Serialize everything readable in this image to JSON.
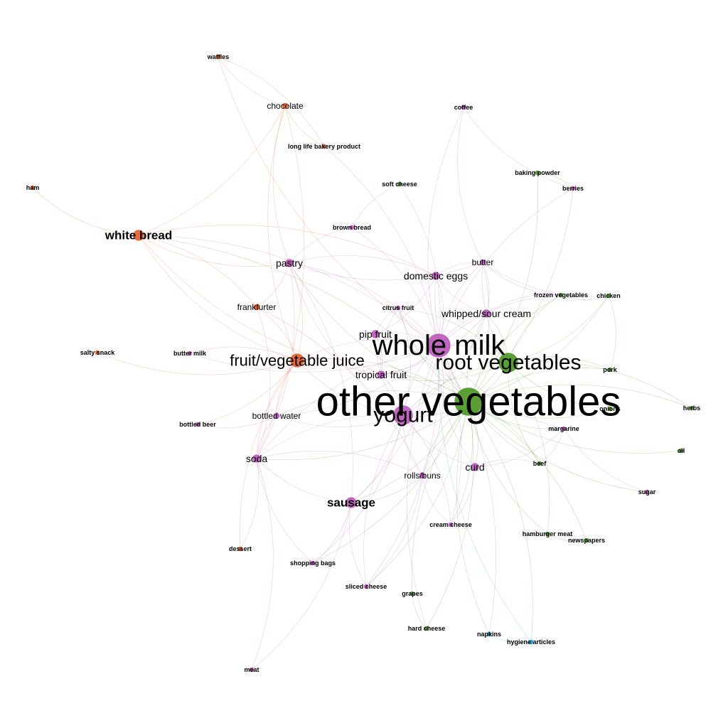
{
  "colors": {
    "orange": "#e8693a",
    "purple": "#c066c0",
    "green": "#5a9e35",
    "cyan": "#29a9d9"
  },
  "nodes": [
    {
      "id": "other_vegetables",
      "label": "other vegetables",
      "group": "green",
      "weight": 10
    },
    {
      "id": "whole_milk",
      "label": "whole milk",
      "group": "purple",
      "weight": 8
    },
    {
      "id": "root_vegetables",
      "label": "root vegetables",
      "group": "green",
      "weight": 6
    },
    {
      "id": "yogurt",
      "label": "yogurt",
      "group": "purple",
      "weight": 6
    },
    {
      "id": "fruit_vegetable_juice",
      "label": "fruit/vegetable juice",
      "group": "orange",
      "weight": 5
    },
    {
      "id": "sausage",
      "label": "sausage",
      "group": "purple",
      "weight": 4
    },
    {
      "id": "white_bread",
      "label": "white bread",
      "group": "orange",
      "weight": 4
    },
    {
      "id": "tropical_fruit",
      "label": "tropical fruit",
      "group": "purple",
      "weight": 3
    },
    {
      "id": "pip_fruit",
      "label": "pip fruit",
      "group": "purple",
      "weight": 3
    },
    {
      "id": "whipped_sour_cream",
      "label": "whipped/sour cream",
      "group": "purple",
      "weight": 3
    },
    {
      "id": "domestic_eggs",
      "label": "domestic eggs",
      "group": "purple",
      "weight": 3
    },
    {
      "id": "pastry",
      "label": "pastry",
      "group": "purple",
      "weight": 3
    },
    {
      "id": "soda",
      "label": "soda",
      "group": "purple",
      "weight": 3
    },
    {
      "id": "curd",
      "label": "curd",
      "group": "purple",
      "weight": 3
    },
    {
      "id": "rolls_buns",
      "label": "rolls/buns",
      "group": "purple",
      "weight": 2
    },
    {
      "id": "butter",
      "label": "butter",
      "group": "purple",
      "weight": 2
    },
    {
      "id": "frankfurter",
      "label": "frankfurter",
      "group": "orange",
      "weight": 2
    },
    {
      "id": "chocolate",
      "label": "chocolate",
      "group": "orange",
      "weight": 2
    },
    {
      "id": "bottled_water",
      "label": "bottled water",
      "group": "purple",
      "weight": 2
    },
    {
      "id": "citrus_fruit",
      "label": "citrus fruit",
      "group": "purple",
      "weight": 1
    },
    {
      "id": "margarine",
      "label": "margarine",
      "group": "purple",
      "weight": 1
    },
    {
      "id": "cream_cheese",
      "label": "cream cheese",
      "group": "purple",
      "weight": 1
    },
    {
      "id": "shopping_bags",
      "label": "shopping bags",
      "group": "purple",
      "weight": 1
    },
    {
      "id": "sliced_cheese",
      "label": "sliced cheese",
      "group": "purple",
      "weight": 1
    },
    {
      "id": "brown_bread",
      "label": "brown bread",
      "group": "purple",
      "weight": 1
    },
    {
      "id": "butter_milk",
      "label": "butter milk",
      "group": "purple",
      "weight": 1
    },
    {
      "id": "bottled_beer",
      "label": "bottled beer",
      "group": "purple",
      "weight": 1
    },
    {
      "id": "coffee",
      "label": "coffee",
      "group": "purple",
      "weight": 1
    },
    {
      "id": "berries",
      "label": "berries",
      "group": "purple",
      "weight": 1
    },
    {
      "id": "sugar",
      "label": "sugar",
      "group": "purple",
      "weight": 1
    },
    {
      "id": "meat",
      "label": "meat",
      "group": "purple",
      "weight": 1
    },
    {
      "id": "waffles",
      "label": "waffles",
      "group": "orange",
      "weight": 1
    },
    {
      "id": "long_life_bakery_product",
      "label": "long life bakery product",
      "group": "orange",
      "weight": 1
    },
    {
      "id": "ham",
      "label": "ham",
      "group": "orange",
      "weight": 1
    },
    {
      "id": "salty_snack",
      "label": "salty snack",
      "group": "orange",
      "weight": 1
    },
    {
      "id": "dessert",
      "label": "dessert",
      "group": "orange",
      "weight": 1
    },
    {
      "id": "soft_cheese",
      "label": "soft cheese",
      "group": "green",
      "weight": 1
    },
    {
      "id": "baking_powder",
      "label": "baking powder",
      "group": "green",
      "weight": 1
    },
    {
      "id": "frozen_vegetables",
      "label": "frozen vegetables",
      "group": "green",
      "weight": 1
    },
    {
      "id": "chicken",
      "label": "chicken",
      "group": "green",
      "weight": 1
    },
    {
      "id": "pork",
      "label": "pork",
      "group": "green",
      "weight": 1
    },
    {
      "id": "onions",
      "label": "onions",
      "group": "green",
      "weight": 1
    },
    {
      "id": "herbs",
      "label": "herbs",
      "group": "green",
      "weight": 1
    },
    {
      "id": "oil",
      "label": "oil",
      "group": "green",
      "weight": 1
    },
    {
      "id": "beef",
      "label": "beef",
      "group": "green",
      "weight": 1
    },
    {
      "id": "hamburger_meat",
      "label": "hamburger meat",
      "group": "green",
      "weight": 1
    },
    {
      "id": "newspapers",
      "label": "newspapers",
      "group": "green",
      "weight": 1
    },
    {
      "id": "grapes",
      "label": "grapes",
      "group": "green",
      "weight": 1
    },
    {
      "id": "hard_cheese",
      "label": "hard cheese",
      "group": "green",
      "weight": 1
    },
    {
      "id": "napkins",
      "label": "napkins",
      "group": "cyan",
      "weight": 1
    },
    {
      "id": "hygiene_articles",
      "label": "hygiene articles",
      "group": "cyan",
      "weight": 1
    }
  ],
  "edges": [
    [
      "whole_milk",
      "other_vegetables"
    ],
    [
      "whole_milk",
      "root_vegetables"
    ],
    [
      "whole_milk",
      "yogurt"
    ],
    [
      "whole_milk",
      "tropical_fruit"
    ],
    [
      "whole_milk",
      "pip_fruit"
    ],
    [
      "whole_milk",
      "whipped_sour_cream"
    ],
    [
      "whole_milk",
      "domestic_eggs"
    ],
    [
      "whole_milk",
      "butter"
    ],
    [
      "whole_milk",
      "curd"
    ],
    [
      "whole_milk",
      "rolls_buns"
    ],
    [
      "whole_milk",
      "pastry"
    ],
    [
      "whole_milk",
      "sausage"
    ],
    [
      "whole_milk",
      "fruit_vegetable_juice"
    ],
    [
      "whole_milk",
      "citrus_fruit"
    ],
    [
      "whole_milk",
      "margarine"
    ],
    [
      "whole_milk",
      "cream_cheese"
    ],
    [
      "whole_milk",
      "soda"
    ],
    [
      "whole_milk",
      "bottled_water"
    ],
    [
      "whole_milk",
      "brown_bread"
    ],
    [
      "whole_milk",
      "coffee"
    ],
    [
      "whole_milk",
      "soft_cheese"
    ],
    [
      "whole_milk",
      "frozen_vegetables"
    ],
    [
      "whole_milk",
      "beef"
    ],
    [
      "whole_milk",
      "sliced_cheese"
    ],
    [
      "whole_milk",
      "hard_cheese"
    ],
    [
      "whole_milk",
      "napkins"
    ],
    [
      "whole_milk",
      "white_bread"
    ],
    [
      "whole_milk",
      "butter_milk"
    ],
    [
      "whole_milk",
      "long_life_bakery_product"
    ],
    [
      "whole_milk",
      "berries"
    ],
    [
      "other_vegetables",
      "root_vegetables"
    ],
    [
      "other_vegetables",
      "yogurt"
    ],
    [
      "other_vegetables",
      "tropical_fruit"
    ],
    [
      "other_vegetables",
      "whipped_sour_cream"
    ],
    [
      "other_vegetables",
      "pip_fruit"
    ],
    [
      "other_vegetables",
      "domestic_eggs"
    ],
    [
      "other_vegetables",
      "butter"
    ],
    [
      "other_vegetables",
      "curd"
    ],
    [
      "other_vegetables",
      "rolls_buns"
    ],
    [
      "other_vegetables",
      "sausage"
    ],
    [
      "other_vegetables",
      "fruit_vegetable_juice"
    ],
    [
      "other_vegetables",
      "citrus_fruit"
    ],
    [
      "other_vegetables",
      "margarine"
    ],
    [
      "other_vegetables",
      "frozen_vegetables"
    ],
    [
      "other_vegetables",
      "chicken"
    ],
    [
      "other_vegetables",
      "pork"
    ],
    [
      "other_vegetables",
      "onions"
    ],
    [
      "other_vegetables",
      "herbs"
    ],
    [
      "other_vegetables",
      "oil"
    ],
    [
      "other_vegetables",
      "beef"
    ],
    [
      "other_vegetables",
      "hamburger_meat"
    ],
    [
      "other_vegetables",
      "newspapers"
    ],
    [
      "other_vegetables",
      "grapes"
    ],
    [
      "other_vegetables",
      "hard_cheese"
    ],
    [
      "other_vegetables",
      "napkins"
    ],
    [
      "other_vegetables",
      "hygiene_articles"
    ],
    [
      "other_vegetables",
      "sugar"
    ],
    [
      "other_vegetables",
      "cream_cheese"
    ],
    [
      "other_vegetables",
      "baking_powder"
    ],
    [
      "other_vegetables",
      "soda"
    ],
    [
      "other_vegetables",
      "bottled_water"
    ],
    [
      "other_vegetables",
      "shopping_bags"
    ],
    [
      "other_vegetables",
      "white_bread"
    ],
    [
      "other_vegetables",
      "pastry"
    ],
    [
      "other_vegetables",
      "berries"
    ],
    [
      "other_vegetables",
      "sliced_cheese"
    ],
    [
      "root_vegetables",
      "yogurt"
    ],
    [
      "root_vegetables",
      "tropical_fruit"
    ],
    [
      "root_vegetables",
      "whipped_sour_cream"
    ],
    [
      "root_vegetables",
      "frozen_vegetables"
    ],
    [
      "root_vegetables",
      "chicken"
    ],
    [
      "root_vegetables",
      "pork"
    ],
    [
      "root_vegetables",
      "onions"
    ],
    [
      "root_vegetables",
      "herbs"
    ],
    [
      "root_vegetables",
      "beef"
    ],
    [
      "root_vegetables",
      "hamburger_meat"
    ],
    [
      "root_vegetables",
      "citrus_fruit"
    ],
    [
      "root_vegetables",
      "butter"
    ],
    [
      "yogurt",
      "tropical_fruit"
    ],
    [
      "yogurt",
      "fruit_vegetable_juice"
    ],
    [
      "yogurt",
      "soda"
    ],
    [
      "yogurt",
      "bottled_water"
    ],
    [
      "yogurt",
      "rolls_buns"
    ],
    [
      "yogurt",
      "sausage"
    ],
    [
      "yogurt",
      "curd"
    ],
    [
      "yogurt",
      "cream_cheese"
    ],
    [
      "yogurt",
      "whipped_sour_cream"
    ],
    [
      "yogurt",
      "pastry"
    ],
    [
      "yogurt",
      "citrus_fruit"
    ],
    [
      "yogurt",
      "pip_fruit"
    ],
    [
      "yogurt",
      "sliced_cheese"
    ],
    [
      "yogurt",
      "shopping_bags"
    ],
    [
      "fruit_vegetable_juice",
      "soda"
    ],
    [
      "fruit_vegetable_juice",
      "white_bread"
    ],
    [
      "fruit_vegetable_juice",
      "frankfurter"
    ],
    [
      "fruit_vegetable_juice",
      "chocolate"
    ],
    [
      "fruit_vegetable_juice",
      "bottled_water"
    ],
    [
      "fruit_vegetable_juice",
      "salty_snack"
    ],
    [
      "fruit_vegetable_juice",
      "pastry"
    ],
    [
      "fruit_vegetable_juice",
      "tropical_fruit"
    ],
    [
      "fruit_vegetable_juice",
      "dessert"
    ],
    [
      "fruit_vegetable_juice",
      "bottled_beer"
    ],
    [
      "fruit_vegetable_juice",
      "butter_milk"
    ],
    [
      "white_bread",
      "ham"
    ],
    [
      "white_bread",
      "chocolate"
    ],
    [
      "white_bread",
      "frankfurter"
    ],
    [
      "white_bread",
      "pastry"
    ],
    [
      "white_bread",
      "domestic_eggs"
    ],
    [
      "white_bread",
      "tropical_fruit"
    ],
    [
      "chocolate",
      "waffles"
    ],
    [
      "chocolate",
      "long_life_bakery_product"
    ],
    [
      "chocolate",
      "soda"
    ],
    [
      "chocolate",
      "pastry"
    ],
    [
      "waffles",
      "long_life_bakery_product"
    ],
    [
      "waffles",
      "whole_milk"
    ],
    [
      "sausage",
      "soda"
    ],
    [
      "sausage",
      "rolls_buns"
    ],
    [
      "sausage",
      "shopping_bags"
    ],
    [
      "sausage",
      "sliced_cheese"
    ],
    [
      "sausage",
      "meat"
    ],
    [
      "sausage",
      "pastry"
    ],
    [
      "soda",
      "bottled_water"
    ],
    [
      "soda",
      "shopping_bags"
    ],
    [
      "soda",
      "dessert"
    ],
    [
      "soda",
      "pastry"
    ],
    [
      "soda",
      "rolls_buns"
    ],
    [
      "soda",
      "frankfurter"
    ],
    [
      "pastry",
      "domestic_eggs"
    ],
    [
      "pastry",
      "butter"
    ],
    [
      "pastry",
      "brown_bread"
    ],
    [
      "tropical_fruit",
      "pip_fruit"
    ],
    [
      "tropical_fruit",
      "citrus_fruit"
    ],
    [
      "tropical_fruit",
      "whipped_sour_cream"
    ],
    [
      "pip_fruit",
      "citrus_fruit"
    ],
    [
      "pip_fruit",
      "domestic_eggs"
    ],
    [
      "domestic_eggs",
      "butter"
    ],
    [
      "domestic_eggs",
      "whipped_sour_cream"
    ],
    [
      "butter",
      "whipped_sour_cream"
    ],
    [
      "butter",
      "frozen_vegetables"
    ],
    [
      "butter",
      "coffee"
    ],
    [
      "butter",
      "chicken"
    ],
    [
      "curd",
      "cream_cheese"
    ],
    [
      "curd",
      "margarine"
    ],
    [
      "curd",
      "beef"
    ],
    [
      "rolls_buns",
      "cream_cheese"
    ],
    [
      "rolls_buns",
      "sliced_cheese"
    ],
    [
      "rolls_buns",
      "frankfurter"
    ],
    [
      "hard_cheese",
      "grapes"
    ],
    [
      "napkins",
      "hygiene_articles"
    ],
    [
      "hygiene_articles",
      "whole_milk"
    ],
    [
      "hamburger_meat",
      "newspapers"
    ],
    [
      "margarine",
      "beef"
    ],
    [
      "margarine",
      "sugar"
    ],
    [
      "brown_bread",
      "soft_cheese"
    ],
    [
      "coffee",
      "berries"
    ],
    [
      "baking_powder",
      "berries"
    ],
    [
      "frankfurter",
      "pastry"
    ],
    [
      "bottled_water",
      "bottled_beer"
    ],
    [
      "meat",
      "soda"
    ],
    [
      "whipped_sour_cream",
      "frozen_vegetables"
    ],
    [
      "frozen_vegetables",
      "chicken"
    ],
    [
      "chicken",
      "pork"
    ]
  ]
}
